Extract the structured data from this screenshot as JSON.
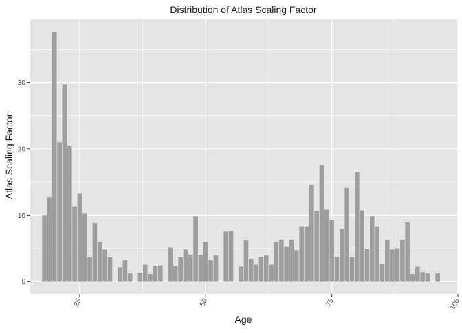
{
  "chart_data": {
    "type": "bar",
    "title": "Distribution of Atlas Scaling Factor",
    "xlabel": "Age",
    "ylabel": "Atlas Scaling Factor",
    "xlim": [
      15.2,
      100.0
    ],
    "ylim": [
      -1.9,
      39.6
    ],
    "x_ticks": [
      25,
      50,
      75,
      100
    ],
    "x_tick_labels": [
      "25",
      "50",
      "75",
      "100"
    ],
    "y_ticks": [
      0,
      10,
      20,
      30
    ],
    "y_tick_labels": [
      "0",
      "10",
      "20",
      "30"
    ],
    "grid": true,
    "legend": "none",
    "bar_color": "#9e9e9e",
    "panel_color": "#e5e5e5",
    "grid_color": "#ffffff",
    "x": [
      18,
      19,
      20,
      21,
      22,
      23,
      24,
      25,
      26,
      27,
      28,
      29,
      30,
      31,
      33,
      34,
      35,
      37,
      38,
      39,
      40,
      41,
      43,
      44,
      45,
      46,
      47,
      48,
      49,
      50,
      51,
      52,
      54,
      55,
      57,
      58,
      59,
      60,
      61,
      62,
      63,
      64,
      65,
      66,
      67,
      68,
      69,
      70,
      71,
      72,
      73,
      74,
      75,
      76,
      77,
      78,
      79,
      80,
      81,
      82,
      83,
      84,
      85,
      86,
      87,
      88,
      89,
      90,
      91,
      92,
      93,
      94,
      96
    ],
    "values": [
      10.0,
      12.7,
      37.7,
      21.0,
      29.7,
      20.5,
      11.3,
      13.3,
      10.3,
      3.6,
      8.8,
      6.0,
      4.8,
      3.6,
      2.1,
      3.2,
      1.2,
      1.3,
      2.5,
      1.1,
      2.3,
      2.4,
      5.1,
      2.3,
      3.6,
      4.8,
      4.0,
      9.8,
      4.0,
      5.9,
      3.2,
      3.9,
      7.5,
      7.6,
      2.2,
      6.2,
      3.4,
      2.5,
      3.7,
      3.9,
      2.5,
      6.0,
      6.3,
      5.2,
      6.3,
      4.7,
      8.3,
      8.3,
      14.6,
      10.6,
      17.6,
      10.8,
      9.3,
      3.7,
      7.9,
      14.1,
      3.6,
      16.5,
      10.7,
      4.9,
      9.8,
      8.3,
      2.6,
      6.3,
      4.8,
      5.0,
      6.3,
      8.9,
      1.1,
      2.2,
      1.4,
      1.2,
      1.2
    ]
  }
}
